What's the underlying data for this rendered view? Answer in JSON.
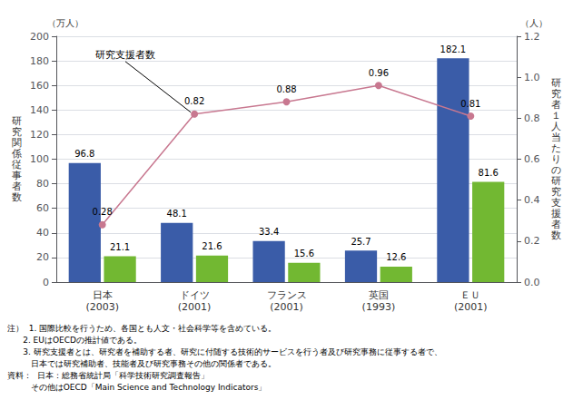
{
  "chart_data": {
    "type": "bar",
    "categories": [
      "日本\n(2003)",
      "ドイツ\n(2001)",
      "フランス\n(2001)",
      "英国\n(1993)",
      "ＥＵ\n(2001)"
    ],
    "series": [
      {
        "type": "bar",
        "color": "#3a5ca8",
        "values": [
          96.8,
          48.1,
          33.4,
          25.7,
          182.1
        ]
      },
      {
        "type": "bar",
        "color": "#72b832",
        "values": [
          21.1,
          21.6,
          15.6,
          12.6,
          81.6
        ]
      },
      {
        "type": "line",
        "axis": "y2",
        "color": "#c87890",
        "marker": "circle",
        "values": [
          0.28,
          0.82,
          0.88,
          0.96,
          0.81
        ]
      }
    ],
    "data_labels": true,
    "grid": true,
    "ylabel": "研\n究\n関\n係\n従\n事\n者\n数",
    "y2label": "研\n究\n者\n１\n人\n当\nた\nり\nの\n研\n究\n支\n援\n者\n数",
    "y_unit": "（万人）",
    "y2_unit": "（人）",
    "ylim": [
      0,
      200
    ],
    "yticks": [
      0,
      20,
      40,
      60,
      80,
      100,
      120,
      140,
      160,
      180,
      200
    ],
    "y2lim": [
      0,
      1.2
    ],
    "y2ticks": [
      {
        "value": 0,
        "label": "0.0"
      },
      0.2,
      0.4,
      0.6,
      0.8,
      {
        "value": 1,
        "label": "1.0"
      },
      1.2
    ],
    "annotations": [
      {
        "text": "研究支援者数",
        "x": "ドイツ\n(2001)",
        "y": 0.82,
        "axis": "y2"
      }
    ],
    "notes": [
      "注）  1. 国際比較を行うため、各国とも人文・社会科学等を含めている。",
      "      2. EUはOECDの推計値である。",
      "      3. 研究支援者とは、研究者を補助する者、研究に付随する技術的サービスを行う者及び研究事務に従事する者で、",
      "         日本では研究補助者、技能者及び研究事務その他の関係者である。",
      "資料：  日本：総務省統計局「科学技術研究調査報告」",
      "         その他はOECD「Main Science and Technology Indicators」"
    ]
  }
}
